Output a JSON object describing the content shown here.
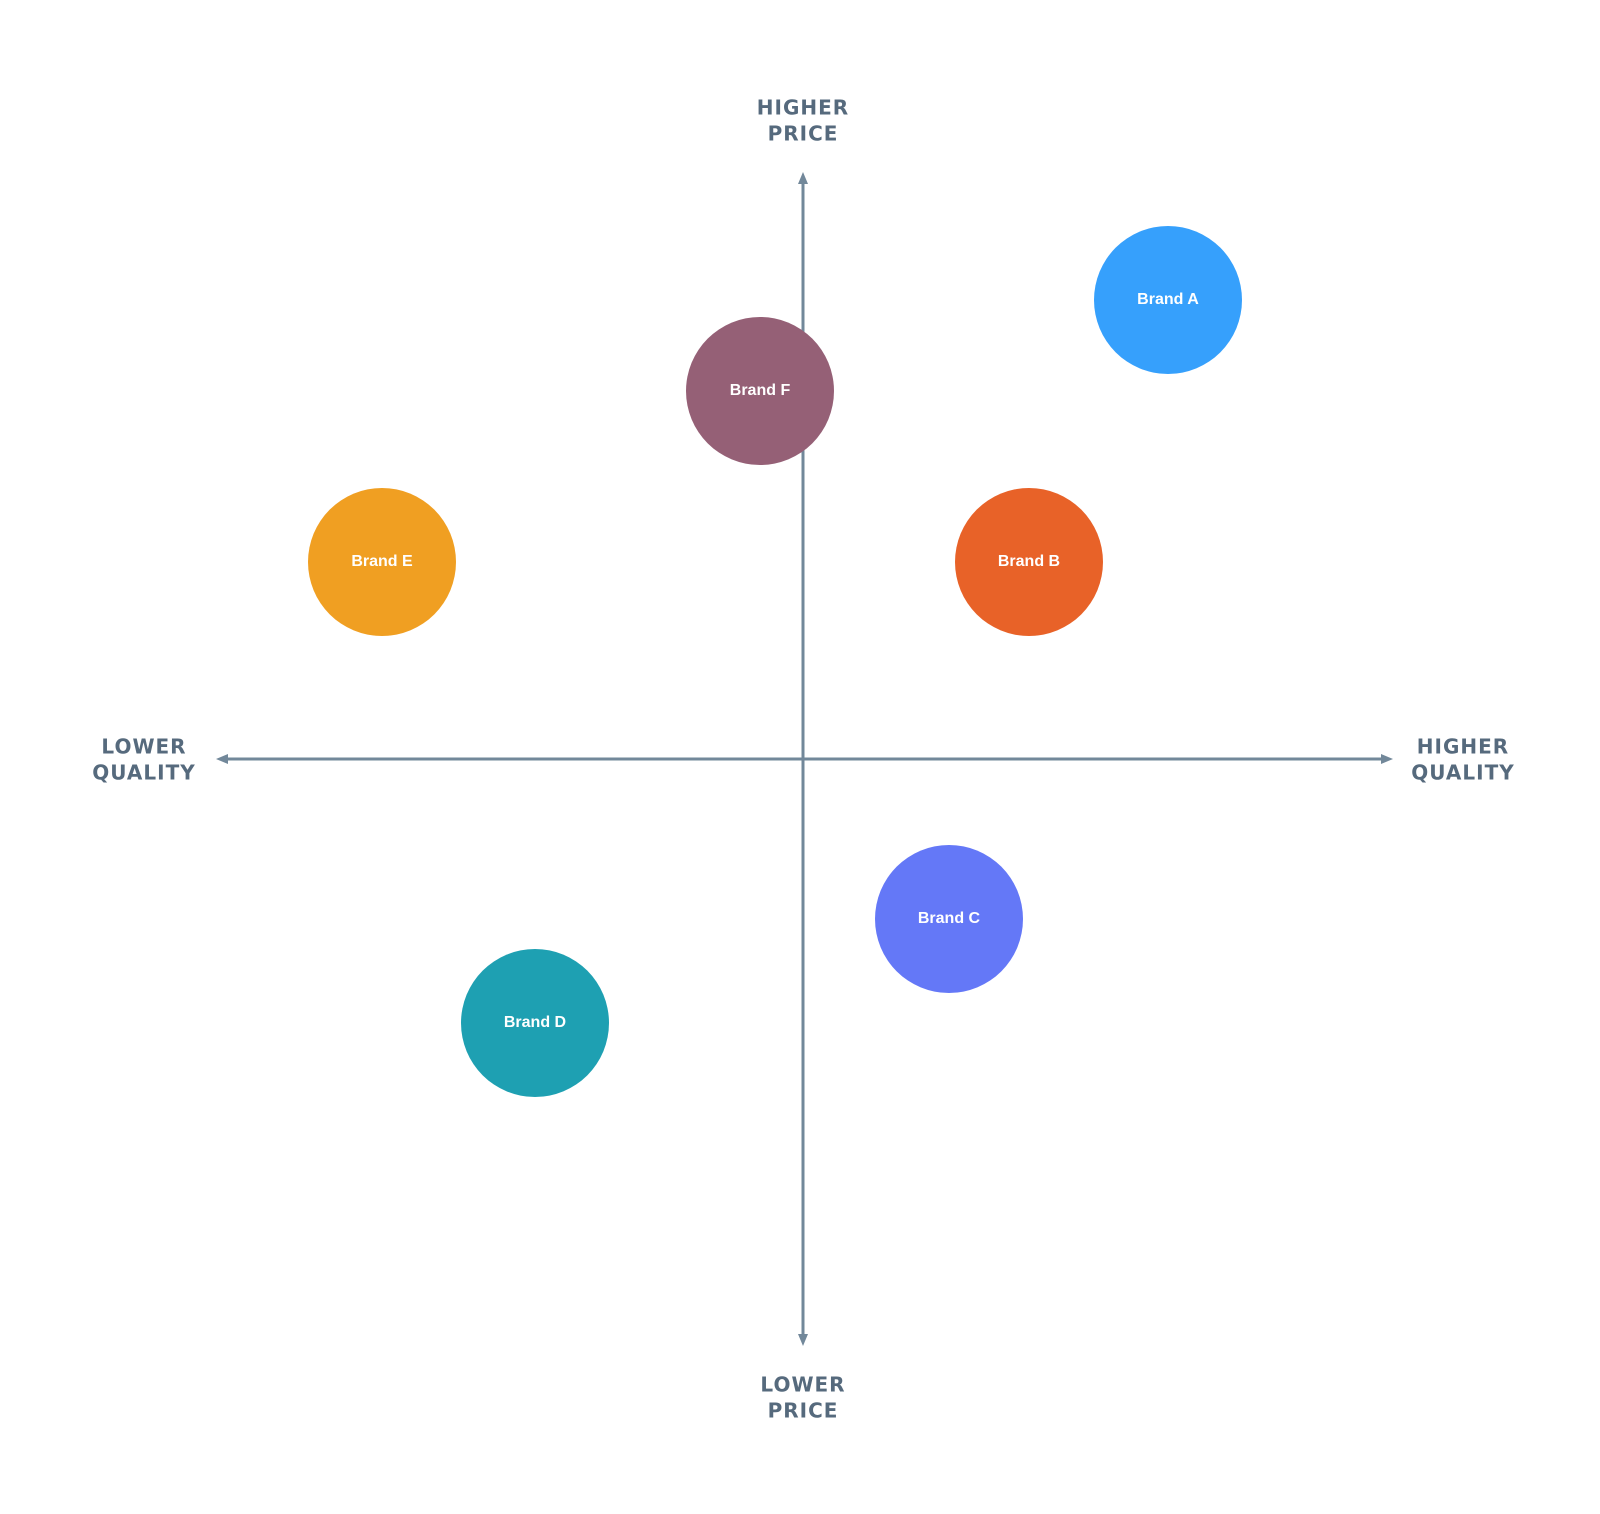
{
  "axes": {
    "top": [
      "HIGHER",
      "PRICE"
    ],
    "bottom": [
      "LOWER",
      "PRICE"
    ],
    "left": [
      "LOWER",
      "QUALITY"
    ],
    "right": [
      "HIGHER",
      "QUALITY"
    ]
  },
  "nodes": [
    {
      "label": "Brand A",
      "color": "#36a0fc"
    },
    {
      "label": "Brand F",
      "color": "#956076"
    },
    {
      "label": "Brand E",
      "color": "#f09f22"
    },
    {
      "label": "Brand B",
      "color": "#e86228"
    },
    {
      "label": "Brand C",
      "color": "#6478f7"
    },
    {
      "label": "Brand D",
      "color": "#1ea0b2"
    }
  ]
}
